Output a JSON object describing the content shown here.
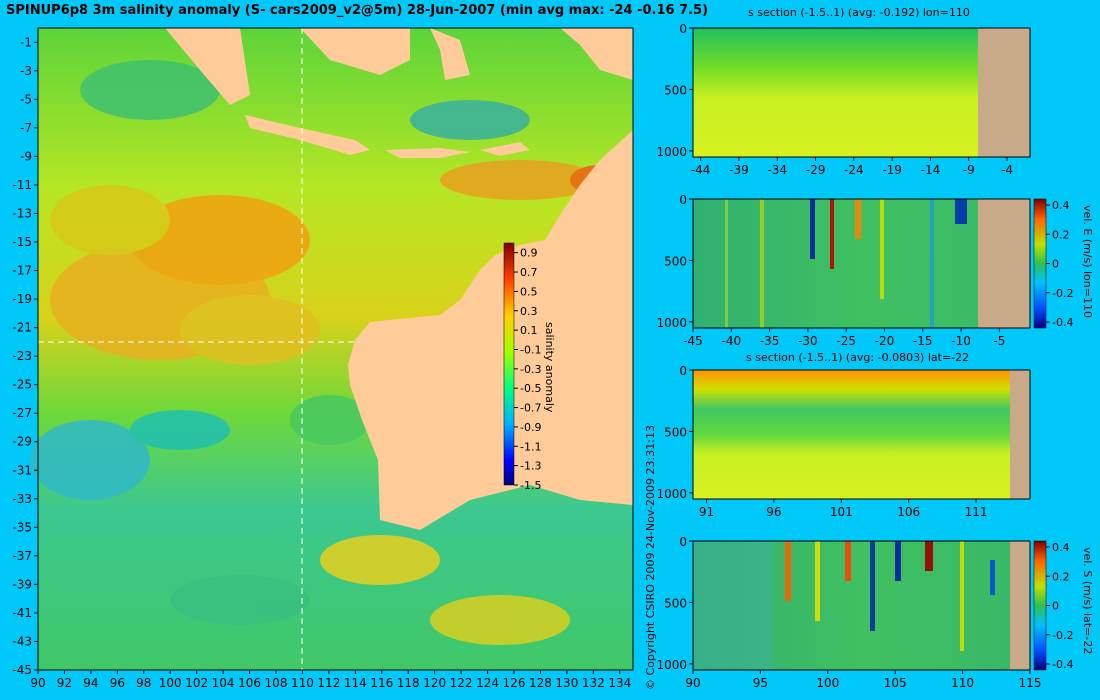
{
  "title": "SPINUP6p8 3m salinity anomaly (S- cars2009_v2@5m) 28-Jun-2007 (min avg max: -24 -0.16 7.5)",
  "copyright": "© Copyright CSIRO 2009   24-Nov-2009 23:31:13",
  "chart_data": [
    {
      "type": "heatmap",
      "name": "map",
      "x_ticks": [
        "90",
        "92",
        "94",
        "96",
        "98",
        "100",
        "102",
        "104",
        "106",
        "108",
        "110",
        "112",
        "114",
        "116",
        "118",
        "120",
        "122",
        "124",
        "126",
        "128",
        "130",
        "132",
        "134"
      ],
      "y_ticks": [
        "-1",
        "-3",
        "-5",
        "-7",
        "-9",
        "-11",
        "-13",
        "-15",
        "-17",
        "-19",
        "-21",
        "-23",
        "-25",
        "-27",
        "-29",
        "-31",
        "-33",
        "-35",
        "-37",
        "-39",
        "-41",
        "-43",
        "-45"
      ],
      "xlim": [
        90,
        135
      ],
      "ylim": [
        -45,
        0
      ],
      "section_lon": 110,
      "section_lat": -22,
      "colorbar": {
        "label": "salinity anomaly",
        "ticks": [
          "0.9",
          "0.7",
          "0.5",
          "0.3",
          "0.1",
          "-0.1",
          "-0.3",
          "-0.5",
          "-0.7",
          "-0.9",
          "-1.1",
          "-1.3",
          "-1.5"
        ],
        "range": [
          -1.5,
          1.0
        ]
      }
    },
    {
      "type": "heatmap",
      "name": "s-section-lon",
      "title": "s section (-1.5..1) (avg: -0.192) lon=110",
      "x_ticks": [
        "-44",
        "-39",
        "-34",
        "-29",
        "-24",
        "-19",
        "-14",
        "-9",
        "-4"
      ],
      "y_ticks": [
        "0",
        "500",
        "1000"
      ],
      "xlim": [
        -45,
        -1
      ],
      "ylim": [
        1050,
        0
      ]
    },
    {
      "type": "heatmap",
      "name": "vel-e-lon",
      "x_ticks": [
        "-45",
        "-40",
        "-35",
        "-30",
        "-25",
        "-20",
        "-15",
        "-10",
        "-5"
      ],
      "y_ticks": [
        "0",
        "500",
        "1000"
      ],
      "xlim": [
        -45,
        -1
      ],
      "ylim": [
        1050,
        0
      ],
      "colorbar": {
        "label": "vel. E (m/s) lon=110",
        "ticks": [
          "0.4",
          "0.2",
          "0",
          "-0.2",
          "-0.4"
        ]
      }
    },
    {
      "type": "heatmap",
      "name": "s-section-lat",
      "title": "s section (-1.5..1) (avg: -0.0803) lat=-22",
      "x_ticks": [
        "91",
        "96",
        "101",
        "106",
        "111"
      ],
      "y_ticks": [
        "0",
        "500",
        "1000"
      ],
      "xlim": [
        90,
        115
      ],
      "ylim": [
        1050,
        0
      ]
    },
    {
      "type": "heatmap",
      "name": "vel-s-lat",
      "x_ticks": [
        "90",
        "95",
        "100",
        "105",
        "110",
        "115"
      ],
      "y_ticks": [
        "0",
        "500",
        "1000"
      ],
      "xlim": [
        90,
        115
      ],
      "ylim": [
        1050,
        0
      ],
      "colorbar": {
        "label": "vel. S (m/s) lat=-22",
        "ticks": [
          "0.4",
          "0.2",
          "0",
          "-0.2",
          "-0.4"
        ]
      }
    }
  ]
}
